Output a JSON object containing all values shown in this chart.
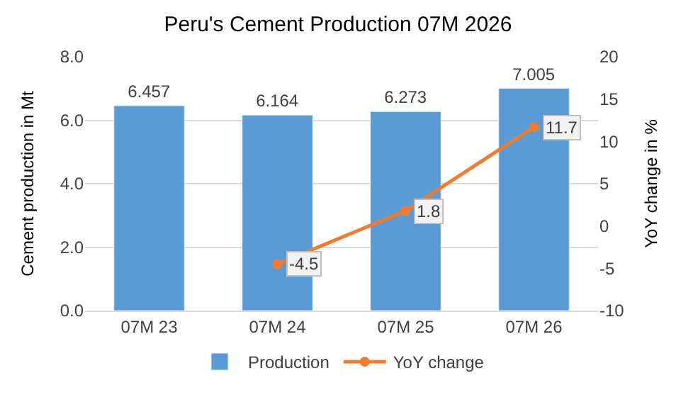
{
  "chart_data": {
    "type": "bar",
    "title": "Peru's Cement Production 07M 2026",
    "ylabel": "Cement production in Mt",
    "y2label": "YoY change in %",
    "categories": [
      "07M 23",
      "07M 24",
      "07M 25",
      "07M 26"
    ],
    "series": [
      {
        "name": "Production",
        "color": "#5b9bd5",
        "values": [
          6.457,
          6.164,
          6.273,
          7.005
        ],
        "value_labels": [
          "6.457",
          "6.164",
          "6.273",
          "7.005"
        ]
      },
      {
        "name": "YoY change",
        "type": "line",
        "axis": "y2",
        "color": "#ed7d31",
        "marker": "circle",
        "values": [
          null,
          -4.5,
          1.8,
          11.7
        ],
        "value_labels": [
          null,
          "-4.5",
          "1.8",
          "11.7"
        ]
      }
    ],
    "ylim": [
      0,
      8
    ],
    "yticks": [
      {
        "value": 0,
        "label": "0.0"
      },
      {
        "value": 2,
        "label": "2.0"
      },
      {
        "value": 4,
        "label": "4.0"
      },
      {
        "value": 6,
        "label": "6.0"
      },
      {
        "value": 8,
        "label": "8.0"
      }
    ],
    "y2lim": [
      -10,
      20
    ],
    "y2ticks": [
      -10,
      -5,
      0,
      5,
      10,
      15,
      20
    ],
    "grid": "y",
    "legend": "bottom"
  }
}
